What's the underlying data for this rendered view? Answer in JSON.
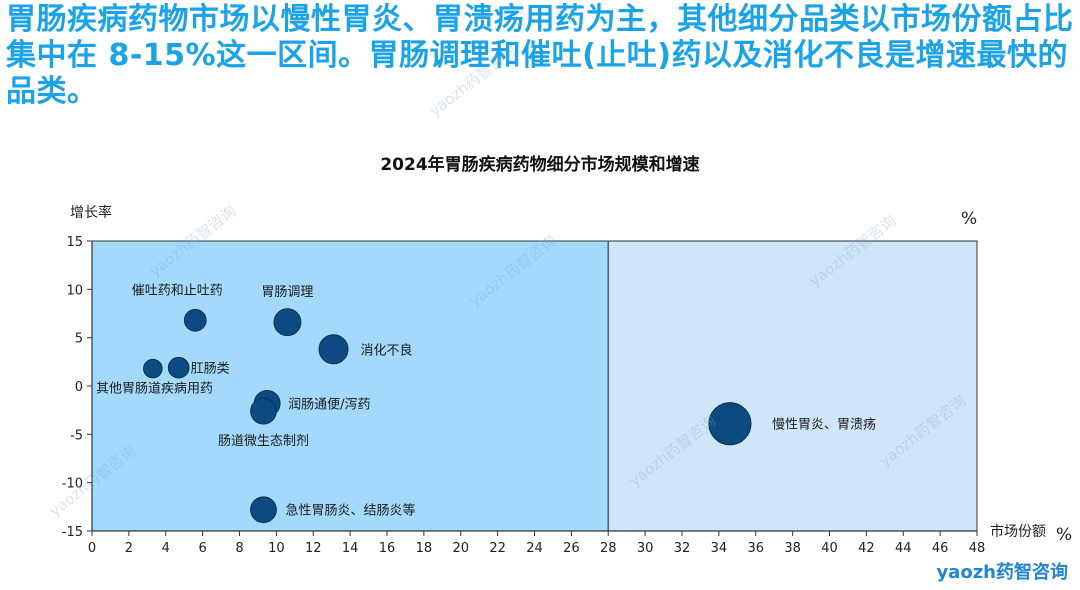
{
  "headline": "胃肠疾病药物市场以慢性胃炎、胃溃疡用药为主，其他细分品类以市场份额占比集中在 8-15%这一区间。胃肠调理和催吐(止吐)药以及消化不良是增速最快的品类。",
  "watermark_text": "yaozh药智咨询",
  "logo_text": "yaozh药智咨询",
  "colors": {
    "headline": "#1aa3e8",
    "left_region": "#a3d9fb",
    "right_region": "#cfe5f8",
    "bubble_fill": "#0d4a82",
    "bubble_stroke": "#072f56",
    "axis": "#333333"
  },
  "chart_data": {
    "type": "scatter",
    "title": "2024年胃肠疾病药物细分市场规模和增速",
    "xlabel": "市场份额",
    "x_unit": "%",
    "ylabel": "增长率",
    "y_unit": "%",
    "xlim": [
      0,
      48
    ],
    "ylim": [
      -15,
      15
    ],
    "x_ticks": [
      0,
      2,
      4,
      6,
      8,
      10,
      12,
      14,
      16,
      18,
      20,
      22,
      24,
      26,
      28,
      30,
      32,
      34,
      36,
      38,
      40,
      42,
      44,
      46,
      48
    ],
    "y_ticks": [
      15,
      10,
      5,
      0,
      -5,
      -10,
      -15
    ],
    "region_split_x": 28,
    "grid": false,
    "legend": "none",
    "points": [
      {
        "label": "胃肠调理",
        "x": 10.6,
        "y": 6.6,
        "size": 10.6
      },
      {
        "label": "催吐药和止吐药",
        "x": 5.6,
        "y": 6.8,
        "size": 5.6
      },
      {
        "label": "消化不良",
        "x": 13.1,
        "y": 3.8,
        "size": 13.1
      },
      {
        "label": "肛肠类",
        "x": 4.7,
        "y": 1.9,
        "size": 4.7
      },
      {
        "label": "其他胃肠道疾病用药",
        "x": 3.3,
        "y": 1.8,
        "size": 3.3
      },
      {
        "label": "润肠通便/泻药",
        "x": 9.5,
        "y": -1.8,
        "size": 9.5
      },
      {
        "label": "肠道微生态制剂",
        "x": 9.3,
        "y": -2.6,
        "size": 9.3
      },
      {
        "label": "急性胃肠炎、结肠炎等",
        "x": 9.3,
        "y": -12.8,
        "size": 9.3
      },
      {
        "label": "慢性胃炎、胃溃疡",
        "x": 34.6,
        "y": -3.9,
        "size": 34.6
      }
    ]
  }
}
